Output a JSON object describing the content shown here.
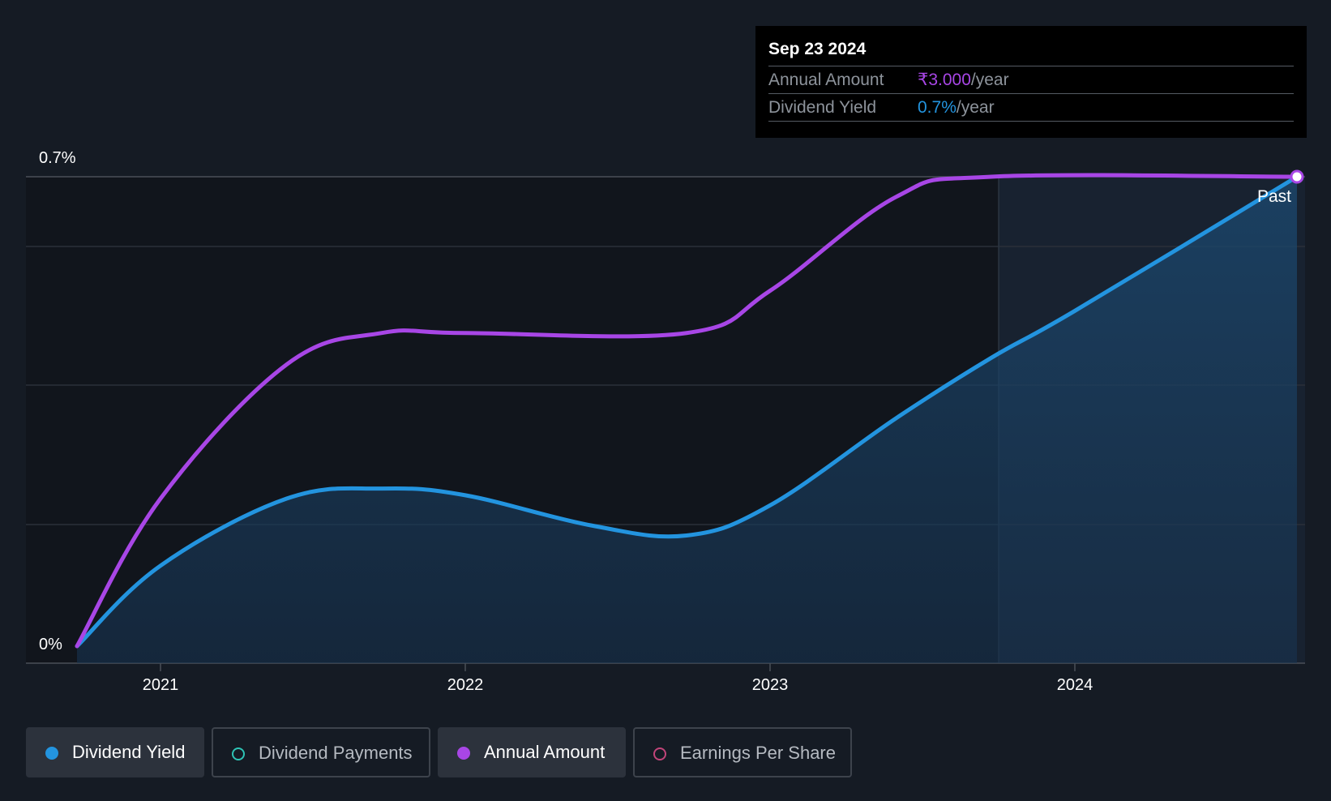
{
  "chart_data": {
    "type": "line",
    "x_ticks": [
      "2021",
      "2022",
      "2023",
      "2024"
    ],
    "y_ticks": [
      "0.7%",
      "0%"
    ],
    "ylim": [
      0,
      0.7
    ],
    "annotation": "Past",
    "series": [
      {
        "name": "Dividend Yield",
        "color": "#2394df",
        "fill": true,
        "points": [
          {
            "x": "2020-09-23",
            "y": 0.0
          },
          {
            "x": "2021-01-01",
            "y": 0.12
          },
          {
            "x": "2021-06-01",
            "y": 0.22
          },
          {
            "x": "2021-09-23",
            "y": 0.235
          },
          {
            "x": "2022-01-01",
            "y": 0.225
          },
          {
            "x": "2022-06-01",
            "y": 0.18
          },
          {
            "x": "2022-09-23",
            "y": 0.165
          },
          {
            "x": "2023-01-01",
            "y": 0.21
          },
          {
            "x": "2023-06-01",
            "y": 0.34
          },
          {
            "x": "2023-09-23",
            "y": 0.43
          },
          {
            "x": "2024-01-01",
            "y": 0.5
          },
          {
            "x": "2024-09-23",
            "y": 0.7
          }
        ]
      },
      {
        "name": "Annual Amount",
        "color": "#a846e6",
        "fill": false,
        "points": [
          {
            "x": "2020-09-23",
            "y": 0.0
          },
          {
            "x": "2021-01-01",
            "y": 0.22
          },
          {
            "x": "2021-06-01",
            "y": 0.42
          },
          {
            "x": "2021-09-23",
            "y": 0.467
          },
          {
            "x": "2022-01-01",
            "y": 0.467
          },
          {
            "x": "2022-09-23",
            "y": 0.467
          },
          {
            "x": "2023-01-01",
            "y": 0.53
          },
          {
            "x": "2023-06-01",
            "y": 0.67
          },
          {
            "x": "2023-09-23",
            "y": 0.7
          },
          {
            "x": "2024-09-23",
            "y": 0.7
          }
        ]
      }
    ]
  },
  "tooltip": {
    "date": "Sep 23 2024",
    "rows": [
      {
        "label": "Annual Amount",
        "value": "₹3.000",
        "suffix": "/year",
        "color": "#a846e6"
      },
      {
        "label": "Dividend Yield",
        "value": "0.7%",
        "suffix": "/year",
        "color": "#2394df"
      }
    ]
  },
  "legend": [
    {
      "label": "Dividend Yield",
      "color": "#2394df",
      "active": true
    },
    {
      "label": "Dividend Payments",
      "color": "#2ec4b6",
      "active": false
    },
    {
      "label": "Annual Amount",
      "color": "#a846e6",
      "active": true
    },
    {
      "label": "Earnings Per Share",
      "color": "#c2457a",
      "active": false
    }
  ]
}
